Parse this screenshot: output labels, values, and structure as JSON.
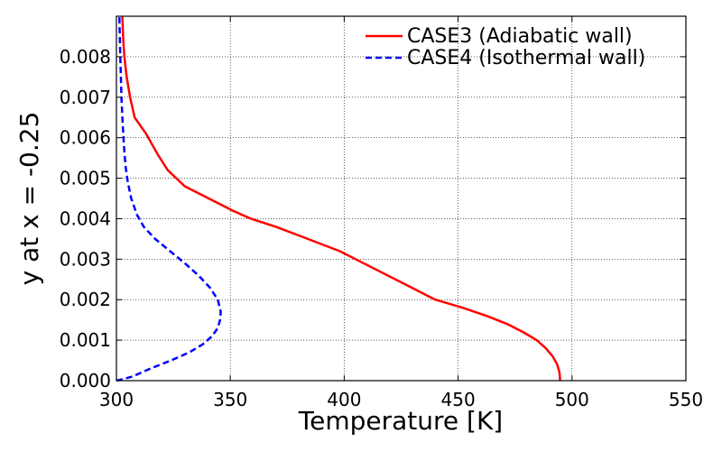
{
  "chart_data": {
    "type": "line",
    "title": "",
    "xlabel": "Temperature [K]",
    "ylabel": "y at x = -0.25",
    "xlim": [
      300,
      550
    ],
    "ylim": [
      0,
      0.009
    ],
    "xticks": [
      "300",
      "350",
      "400",
      "450",
      "500",
      "550"
    ],
    "yticks": [
      "0.000",
      "0.001",
      "0.002",
      "0.003",
      "0.004",
      "0.005",
      "0.006",
      "0.007",
      "0.008"
    ],
    "grid": true,
    "legend_position": "top-right",
    "series": [
      {
        "name": "CASE3 (Adiabatic wall)",
        "color": "#ff0000",
        "style": "solid",
        "points": [
          [
            494.8,
            0.0
          ],
          [
            494.5,
            0.0002
          ],
          [
            493.5,
            0.0004
          ],
          [
            491.5,
            0.0006
          ],
          [
            488.5,
            0.0008
          ],
          [
            484.5,
            0.001
          ],
          [
            478.5,
            0.0012
          ],
          [
            471.5,
            0.0014
          ],
          [
            462.5,
            0.0016
          ],
          [
            452.0,
            0.0018
          ],
          [
            440.0,
            0.002
          ],
          [
            426.0,
            0.0024
          ],
          [
            412.0,
            0.0028
          ],
          [
            398.0,
            0.0032
          ],
          [
            384.0,
            0.0035
          ],
          [
            370.0,
            0.0038
          ],
          [
            359.0,
            0.004
          ],
          [
            351.0,
            0.0042
          ],
          [
            344.0,
            0.0044
          ],
          [
            337.0,
            0.0046
          ],
          [
            330.0,
            0.0048
          ],
          [
            322.5,
            0.0052
          ],
          [
            318.0,
            0.0056
          ],
          [
            313.0,
            0.0061
          ],
          [
            308.0,
            0.0065
          ],
          [
            306.0,
            0.007
          ],
          [
            304.5,
            0.0075
          ],
          [
            303.5,
            0.008
          ],
          [
            303.0,
            0.0084
          ],
          [
            302.6,
            0.009
          ]
        ]
      },
      {
        "name": "CASE4 (Isothermal wall)",
        "color": "#0000ff",
        "style": "dashed",
        "points": [
          [
            300.0,
            0.0
          ],
          [
            307.0,
            0.0001
          ],
          [
            315.0,
            0.0003
          ],
          [
            324.0,
            0.0005
          ],
          [
            332.0,
            0.0007
          ],
          [
            338.0,
            0.0009
          ],
          [
            342.0,
            0.0011
          ],
          [
            344.5,
            0.0013
          ],
          [
            345.5,
            0.0015
          ],
          [
            345.8,
            0.0017
          ],
          [
            344.5,
            0.002
          ],
          [
            341.0,
            0.0023
          ],
          [
            336.0,
            0.0026
          ],
          [
            330.0,
            0.0029
          ],
          [
            323.5,
            0.0032
          ],
          [
            317.0,
            0.0035
          ],
          [
            312.0,
            0.0038
          ],
          [
            309.0,
            0.0041
          ],
          [
            306.5,
            0.0045
          ],
          [
            305.0,
            0.0049
          ],
          [
            304.0,
            0.0053
          ],
          [
            303.3,
            0.0058
          ],
          [
            302.7,
            0.0064
          ],
          [
            302.2,
            0.007
          ],
          [
            301.9,
            0.0076
          ],
          [
            301.6,
            0.0082
          ],
          [
            301.4,
            0.0087
          ],
          [
            301.3,
            0.009
          ]
        ]
      }
    ]
  }
}
